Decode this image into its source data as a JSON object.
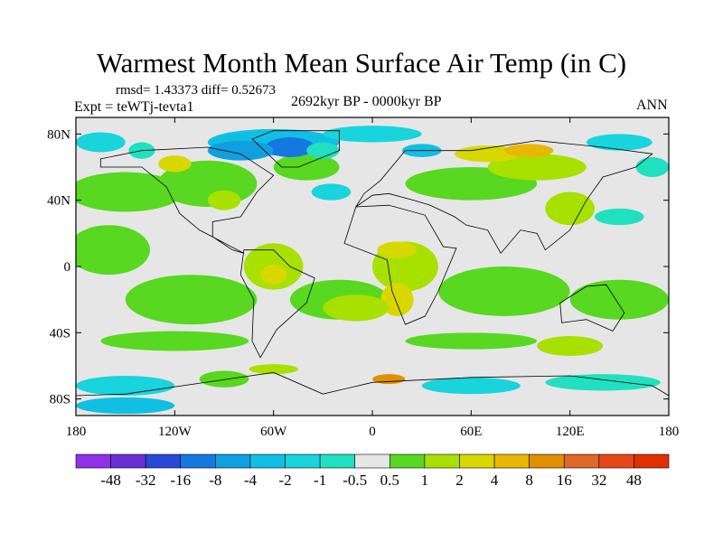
{
  "title": "Warmest Month Mean Surface Air Temp (in C)",
  "stats": {
    "rmsd_label": "rmsd= 1.43373 diff= 0.52673"
  },
  "experiment": "Expt = teWTj-tevta1",
  "period": "2692kyr BP - 0000kyr BP",
  "season": "ANN",
  "map": {
    "lat_ticks": [
      "80N",
      "40N",
      "0",
      "40S",
      "80S"
    ],
    "lat_values": [
      80,
      40,
      0,
      -40,
      -80
    ],
    "lon_ticks": [
      "180",
      "120W",
      "60W",
      "0",
      "60E",
      "120E",
      "180"
    ],
    "lon_values": [
      -180,
      -120,
      -60,
      0,
      60,
      120,
      180
    ]
  },
  "colorbar": {
    "labels": [
      "-48",
      "-32",
      "-16",
      "-8",
      "-4",
      "-2",
      "-1",
      "-0.5",
      "0.5",
      "1",
      "2",
      "4",
      "8",
      "16",
      "32",
      "48"
    ],
    "colors": [
      "#9030e8",
      "#6a30d8",
      "#2848d8",
      "#1478e0",
      "#10a0e0",
      "#10c0e4",
      "#18d4dc",
      "#20e0c0",
      "#e6e6e6",
      "#58d820",
      "#a8e000",
      "#d8d800",
      "#e8b800",
      "#e09000",
      "#e06828",
      "#e84818",
      "#e03000"
    ]
  }
}
